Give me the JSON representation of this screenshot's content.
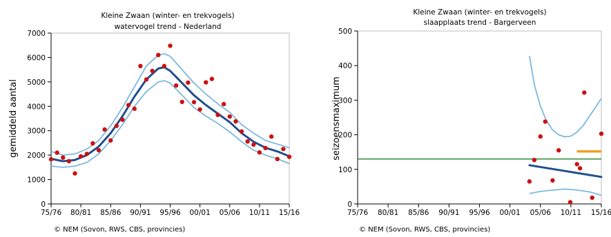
{
  "chart_data": [
    {
      "type": "scatter",
      "title": "Kleine Zwaan (winter- en trekvogels)",
      "subtitle": "watervogel trend - Nederland",
      "xlabel": "",
      "ylabel": "gemiddeld aantal",
      "ylim": [
        0,
        7000
      ],
      "yticks": [
        "0",
        "1000",
        "2000",
        "3000",
        "4000",
        "5000",
        "6000",
        "7000"
      ],
      "xticks": [
        "75/76",
        "80/81",
        "85/86",
        "90/91",
        "95/96",
        "00/01",
        "05/06",
        "10/11",
        "15/16"
      ],
      "xtick_index": [
        0,
        5,
        10,
        15,
        20,
        25,
        30,
        35,
        40
      ],
      "xrange": [
        0,
        40
      ],
      "credit": "© NEM (Sovon, RWS, CBS, provincies)",
      "colors": {
        "points": "#cc1111",
        "trend": "#1f4e8c",
        "ci": "#7cb8df",
        "axis": "#000000"
      },
      "series": [
        {
          "kind": "points",
          "x": [
            0,
            1,
            2,
            3,
            4,
            5,
            6,
            7,
            8,
            9,
            10,
            11,
            12,
            13,
            14,
            15,
            16,
            17,
            18,
            19,
            20,
            21,
            22,
            23,
            24,
            25,
            26,
            27,
            28,
            29,
            30,
            31,
            32,
            33,
            34,
            35,
            36,
            37,
            38,
            39,
            40
          ],
          "y": [
            1830,
            2100,
            1900,
            1750,
            1250,
            1950,
            2050,
            2480,
            2200,
            3050,
            2600,
            3200,
            3450,
            4050,
            3900,
            5650,
            5100,
            5450,
            6100,
            5650,
            6480,
            4850,
            4180,
            4970,
            4170,
            3870,
            4980,
            5120,
            3650,
            4090,
            3580,
            3380,
            2970,
            2560,
            2430,
            2110,
            2290,
            2760,
            1840,
            2250,
            1930
          ]
        },
        {
          "kind": "trend",
          "x": [
            0,
            2,
            4,
            6,
            8,
            10,
            12,
            14,
            16,
            18,
            19,
            20,
            22,
            24,
            26,
            28,
            30,
            32,
            34,
            36,
            38,
            40
          ],
          "y": [
            1850,
            1750,
            1800,
            2000,
            2350,
            2900,
            3600,
            4400,
            5100,
            5550,
            5600,
            5450,
            4950,
            4450,
            4050,
            3700,
            3350,
            2900,
            2550,
            2300,
            2150,
            1950
          ]
        },
        {
          "kind": "ci_upper",
          "x": [
            0,
            2,
            4,
            6,
            8,
            10,
            12,
            14,
            16,
            18,
            19,
            20,
            22,
            24,
            26,
            28,
            30,
            32,
            34,
            36,
            38,
            40
          ],
          "y": [
            2150,
            2000,
            2050,
            2250,
            2600,
            3200,
            3950,
            4800,
            5650,
            6100,
            6150,
            6050,
            5500,
            4950,
            4500,
            4100,
            3750,
            3250,
            2900,
            2600,
            2450,
            2300
          ]
        },
        {
          "kind": "ci_lower",
          "x": [
            0,
            2,
            4,
            6,
            8,
            10,
            12,
            14,
            16,
            18,
            19,
            20,
            22,
            24,
            26,
            28,
            30,
            32,
            34,
            36,
            38,
            40
          ],
          "y": [
            1550,
            1500,
            1550,
            1700,
            2050,
            2600,
            3250,
            4000,
            4600,
            5000,
            5050,
            4950,
            4450,
            3950,
            3600,
            3300,
            2950,
            2550,
            2200,
            2000,
            1850,
            1650
          ]
        }
      ]
    },
    {
      "type": "scatter",
      "title": "Kleine Zwaan (winter- en trekvogels)",
      "subtitle": "slaapplaats trend - Bargerveen",
      "xlabel": "",
      "ylabel": "seizoensmaximum",
      "ylim": [
        0,
        500
      ],
      "yticks": [
        "0",
        "100",
        "200",
        "300",
        "400",
        "500"
      ],
      "xticks": [
        "75/76",
        "80/81",
        "85/86",
        "90/91",
        "95/96",
        "00/01",
        "05/06",
        "10/11",
        "15/16"
      ],
      "xtick_index": [
        0,
        5,
        10,
        15,
        20,
        25,
        30,
        35,
        40
      ],
      "xrange": [
        0,
        40
      ],
      "credit": "© NEM (Sovon, RWS, CBS, provincies)",
      "colors": {
        "points": "#cc1111",
        "trend": "#1f4e8c",
        "ci": "#7cb8df",
        "reference": "#2e8b3a",
        "highlight": "#f0a020",
        "axis": "#000000"
      },
      "series": [
        {
          "kind": "points",
          "x": [
            28.2,
            29,
            30,
            30.8,
            32,
            33,
            34.9,
            36,
            36.5,
            37.2,
            38.5,
            40
          ],
          "y": [
            65,
            127,
            195,
            238,
            68,
            155,
            5,
            115,
            103,
            322,
            18,
            203
          ]
        },
        {
          "kind": "trend",
          "x": [
            28.2,
            40
          ],
          "y": [
            112,
            78
          ]
        },
        {
          "kind": "ci_upper",
          "x": [
            28.2,
            29,
            30,
            31,
            32,
            33,
            34,
            35,
            36,
            37,
            38,
            39,
            40
          ],
          "y": [
            428,
            345,
            282,
            240,
            214,
            200,
            194,
            196,
            208,
            226,
            252,
            278,
            305
          ]
        },
        {
          "kind": "ci_lower",
          "x": [
            28.2,
            30,
            32,
            34,
            36,
            38,
            40
          ],
          "y": [
            30,
            36,
            40,
            43,
            40,
            35,
            25
          ]
        },
        {
          "kind": "reference",
          "x": [
            0,
            40
          ],
          "y": [
            130,
            130
          ]
        },
        {
          "kind": "highlight",
          "x": [
            36,
            40
          ],
          "y": [
            152,
            152
          ]
        }
      ]
    }
  ]
}
